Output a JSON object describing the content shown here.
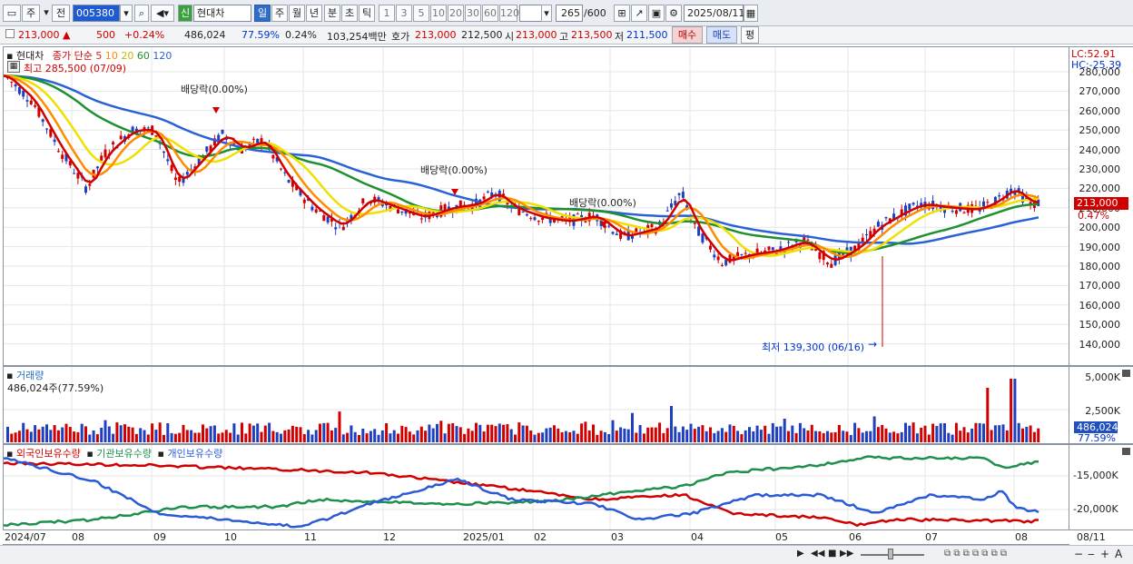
{
  "toolbar": {
    "period_main": "주",
    "prev_label": "전",
    "code": "005380",
    "new_badge": "신",
    "stock_name": "현대차",
    "periods": [
      "일",
      "주",
      "월",
      "년",
      "분",
      "초",
      "틱"
    ],
    "minutes": [
      "1",
      "3",
      "5",
      "10",
      "20",
      "30",
      "60",
      "120"
    ],
    "count": "265",
    "count_max": "/600",
    "date": "2025/08/11"
  },
  "quote": {
    "price": "213,000",
    "change": "500",
    "change_pct": "+0.24%",
    "volume": "486,024",
    "vol_ratio": "77.59%",
    "turnover_pct": "0.24%",
    "amount": "103,254백만",
    "ask_label": "호가",
    "ask1": "213,000",
    "ask2": "212,500",
    "open_label": "시",
    "open": "213,000",
    "high_label": "고",
    "high": "213,500",
    "low_label": "저",
    "low": "211,500",
    "buy_btn": "매수",
    "sell_btn": "매도",
    "eval_btn": "평"
  },
  "price_pane": {
    "name": "현대차",
    "legend_prefix": "종가 단순",
    "ma_legend": [
      {
        "label": "5",
        "color": "#e02020"
      },
      {
        "label": "10",
        "color": "#ff8c00"
      },
      {
        "label": "20",
        "color": "#e8d800"
      },
      {
        "label": "60",
        "color": "#1f8f2f"
      },
      {
        "label": "120",
        "color": "#2a62d6"
      }
    ],
    "high_note": "최고 285,500 (07/09)",
    "low_note": "최저 139,300 (06/16)",
    "dividend_label": "배당락(0.00%)",
    "lc": "LC:52.91",
    "hc": "HC:-25.39",
    "y_ticks": [
      "280,000",
      "270,000",
      "260,000",
      "250,000",
      "240,000",
      "230,000",
      "220,000",
      "210,000",
      "200,000",
      "190,000",
      "180,000",
      "170,000",
      "160,000",
      "150,000",
      "140,000"
    ],
    "last_price": "213,000",
    "last_pct": "0.47%"
  },
  "volume_pane": {
    "title": "거래량",
    "value": "486,024주(77.59%)",
    "y_ticks": [
      "5,000K",
      "2,500K"
    ],
    "last": "486,024",
    "last_pct": "77.59%"
  },
  "holding_pane": {
    "legend": [
      {
        "label": "외국인보유수량",
        "color": "#d00000"
      },
      {
        "label": "기관보유수량",
        "color": "#1f8f4f"
      },
      {
        "label": "개인보유수량",
        "color": "#2a5ad6"
      }
    ],
    "y_ticks": [
      "-15,000K",
      "-20,000K"
    ]
  },
  "x_axis": [
    "2024/07",
    "08",
    "09",
    "10",
    "11",
    "12",
    "2025/01",
    "02",
    "03",
    "04",
    "05",
    "06",
    "07",
    "08",
    "08/11"
  ],
  "colors": {
    "up": "#d00000",
    "down": "#0033cc"
  }
}
